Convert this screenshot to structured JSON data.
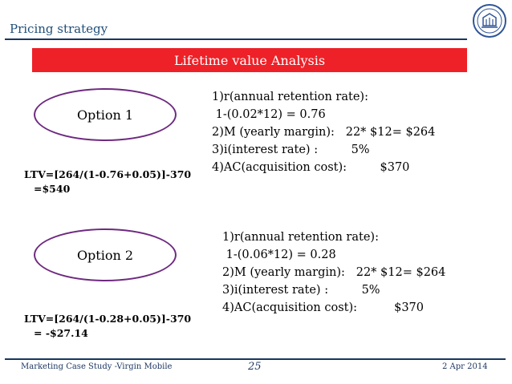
{
  "header": {
    "title": "Pricing strategy"
  },
  "banner": {
    "title": "Lifetime value Analysis"
  },
  "option1": {
    "label": "Option 1",
    "ltv_line1": "LTV=[264/(1-0.76+0.05)]-370",
    "ltv_line2": "=$540",
    "items": [
      "1)r(annual retention rate):",
      " 1-(0.02*12) = 0.76",
      "2)M (yearly margin):   22* $12= $264",
      "3)i(interest rate) :         5%",
      "4)AC(acquisition cost):         $370"
    ]
  },
  "option2": {
    "label": "Option 2",
    "ltv_line1": "LTV=[264/(1-0.28+0.05)]-370",
    "ltv_line2": "= -$27.14",
    "items": [
      "1)r(annual retention rate):",
      " 1-(0.06*12) = 0.28",
      "2)M (yearly margin):   22* $12= $264",
      "3)i(interest rate) :         5%",
      "4)AC(acquisition cost):          $370"
    ]
  },
  "footer": {
    "left": "Marketing Case Study -Virgin Mobile",
    "page": "25",
    "date": "2 Apr 2014"
  },
  "colors": {
    "banner": "#ee2128",
    "accent": "#17375e",
    "ellipse": "#6e2a80"
  },
  "icons": {
    "logo": "university-seal-icon"
  }
}
